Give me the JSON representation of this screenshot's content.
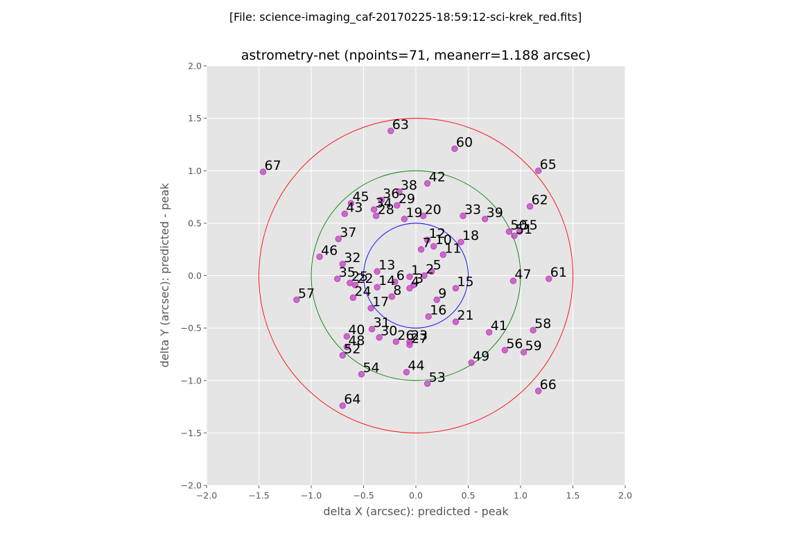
{
  "suptitle": "[File: science-imaging_caf-20170225-18:59:12-sci-krek_red.fits]",
  "chart_data": {
    "type": "scatter",
    "title": "astrometry-net (npoints=71, meanerr=1.188 arcsec)",
    "xlabel": "delta X (arcsec): predicted - peak",
    "ylabel": "delta Y (arcsec): predicted - peak",
    "xlim": [
      -2.0,
      2.0
    ],
    "ylim": [
      -2.0,
      2.0
    ],
    "xticks": [
      "−2.0",
      "−1.5",
      "−1.0",
      "−0.5",
      "0.0",
      "0.5",
      "1.0",
      "1.5",
      "2.0"
    ],
    "yticks": [
      "−2.0",
      "−1.5",
      "−1.0",
      "−0.5",
      "0.0",
      "0.5",
      "1.0",
      "1.5",
      "2.0"
    ],
    "grid": true,
    "background": "#e5e5e5",
    "marker_color": "#bf40bf",
    "circles": [
      {
        "radius": 0.5,
        "color": "#0000ff"
      },
      {
        "radius": 1.0,
        "color": "#008000"
      },
      {
        "radius": 1.5,
        "color": "#ff0000"
      }
    ],
    "points": [
      {
        "id": "1",
        "x": -0.06,
        "y": -0.01
      },
      {
        "id": "2",
        "x": 0.08,
        "y": 0.0
      },
      {
        "id": "3",
        "x": -0.02,
        "y": -0.09
      },
      {
        "id": "4",
        "x": -0.06,
        "y": -0.12
      },
      {
        "id": "5",
        "x": 0.15,
        "y": 0.04
      },
      {
        "id": "6",
        "x": -0.2,
        "y": -0.06
      },
      {
        "id": "7",
        "x": 0.05,
        "y": 0.25
      },
      {
        "id": "8",
        "x": -0.23,
        "y": -0.2
      },
      {
        "id": "9",
        "x": 0.2,
        "y": -0.23
      },
      {
        "id": "10",
        "x": 0.17,
        "y": 0.28
      },
      {
        "id": "11",
        "x": 0.26,
        "y": 0.2
      },
      {
        "id": "12",
        "x": 0.11,
        "y": 0.34
      },
      {
        "id": "13",
        "x": -0.37,
        "y": 0.04
      },
      {
        "id": "14",
        "x": -0.37,
        "y": -0.11
      },
      {
        "id": "15",
        "x": 0.38,
        "y": -0.12
      },
      {
        "id": "16",
        "x": 0.12,
        "y": -0.39
      },
      {
        "id": "17",
        "x": -0.43,
        "y": -0.31
      },
      {
        "id": "18",
        "x": 0.43,
        "y": 0.32
      },
      {
        "id": "19",
        "x": -0.11,
        "y": 0.54
      },
      {
        "id": "20",
        "x": 0.07,
        "y": 0.57
      },
      {
        "id": "21",
        "x": 0.38,
        "y": -0.44
      },
      {
        "id": "22",
        "x": -0.58,
        "y": -0.09
      },
      {
        "id": "23",
        "x": -0.06,
        "y": -0.63
      },
      {
        "id": "24",
        "x": -0.6,
        "y": -0.21
      },
      {
        "id": "25",
        "x": -0.63,
        "y": -0.07
      },
      {
        "id": "26",
        "x": -0.19,
        "y": -0.63
      },
      {
        "id": "27",
        "x": -0.06,
        "y": -0.66
      },
      {
        "id": "28",
        "x": -0.38,
        "y": 0.57
      },
      {
        "id": "29",
        "x": -0.18,
        "y": 0.67
      },
      {
        "id": "30",
        "x": -0.35,
        "y": -0.59
      },
      {
        "id": "31",
        "x": -0.42,
        "y": -0.51
      },
      {
        "id": "32",
        "x": -0.7,
        "y": 0.11
      },
      {
        "id": "33",
        "x": 0.45,
        "y": 0.57
      },
      {
        "id": "34",
        "x": -0.4,
        "y": 0.63
      },
      {
        "id": "35",
        "x": -0.75,
        "y": -0.03
      },
      {
        "id": "36",
        "x": -0.33,
        "y": 0.72
      },
      {
        "id": "37",
        "x": -0.74,
        "y": 0.35
      },
      {
        "id": "38",
        "x": -0.16,
        "y": 0.8
      },
      {
        "id": "39",
        "x": 0.66,
        "y": 0.54
      },
      {
        "id": "40",
        "x": -0.66,
        "y": -0.58
      },
      {
        "id": "41",
        "x": 0.7,
        "y": -0.54
      },
      {
        "id": "42",
        "x": 0.11,
        "y": 0.88
      },
      {
        "id": "43",
        "x": -0.68,
        "y": 0.59
      },
      {
        "id": "44",
        "x": -0.09,
        "y": -0.92
      },
      {
        "id": "45",
        "x": -0.62,
        "y": 0.69
      },
      {
        "id": "46",
        "x": -0.92,
        "y": 0.18
      },
      {
        "id": "47",
        "x": 0.93,
        "y": -0.05
      },
      {
        "id": "48",
        "x": -0.66,
        "y": -0.68
      },
      {
        "id": "49",
        "x": 0.53,
        "y": -0.83
      },
      {
        "id": "50",
        "x": 0.89,
        "y": 0.42
      },
      {
        "id": "51",
        "x": 0.94,
        "y": 0.38
      },
      {
        "id": "52",
        "x": -0.7,
        "y": -0.76
      },
      {
        "id": "53",
        "x": 0.11,
        "y": -1.03
      },
      {
        "id": "54",
        "x": -0.52,
        "y": -0.94
      },
      {
        "id": "55",
        "x": 0.99,
        "y": 0.42
      },
      {
        "id": "56",
        "x": 0.85,
        "y": -0.71
      },
      {
        "id": "57",
        "x": -1.14,
        "y": -0.23
      },
      {
        "id": "58",
        "x": 1.12,
        "y": -0.52
      },
      {
        "id": "59",
        "x": 1.03,
        "y": -0.73
      },
      {
        "id": "60",
        "x": 0.37,
        "y": 1.21
      },
      {
        "id": "61",
        "x": 1.27,
        "y": -0.03
      },
      {
        "id": "62",
        "x": 1.09,
        "y": 0.66
      },
      {
        "id": "63",
        "x": -0.24,
        "y": 1.38
      },
      {
        "id": "64",
        "x": -0.7,
        "y": -1.24
      },
      {
        "id": "65",
        "x": 1.17,
        "y": 1.0
      },
      {
        "id": "66",
        "x": 1.17,
        "y": -1.1
      },
      {
        "id": "67",
        "x": -1.46,
        "y": 0.99
      }
    ]
  }
}
